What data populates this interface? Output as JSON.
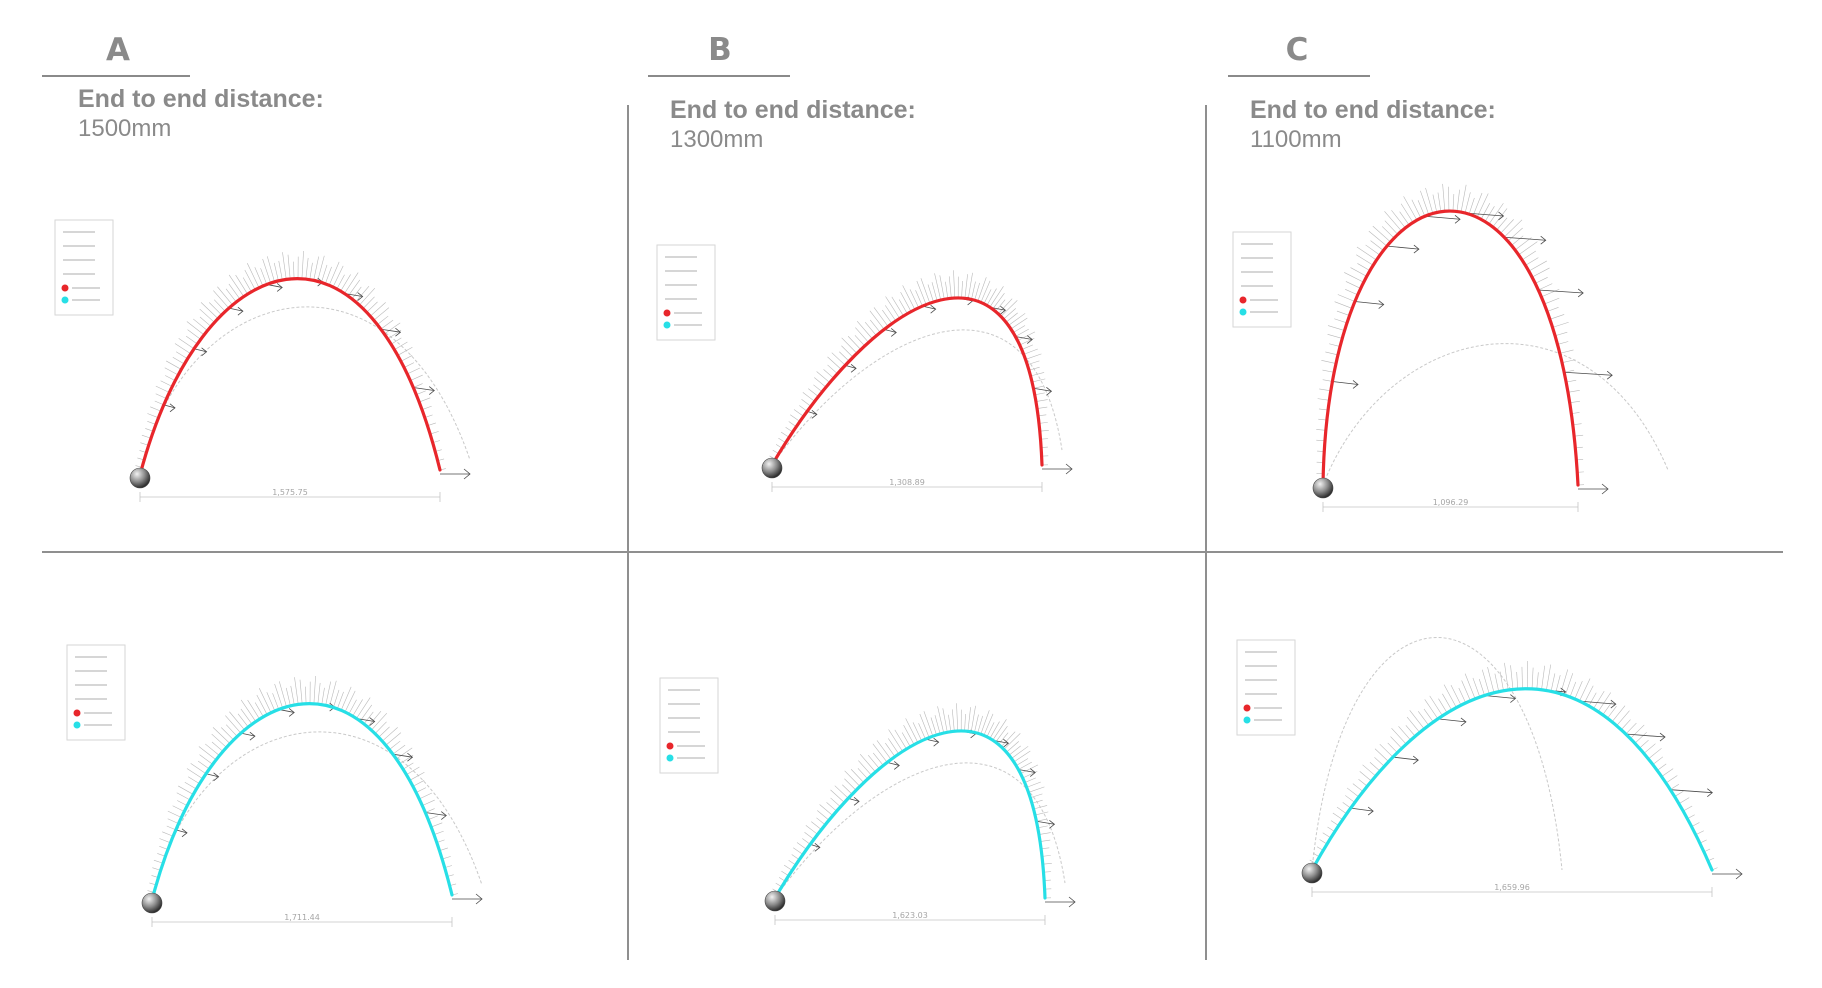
{
  "columns": [
    {
      "letter": "A",
      "distance_title": "End to end distance:",
      "distance_value": "1500mm"
    },
    {
      "letter": "B",
      "distance_title": "End to end distance:",
      "distance_value": "1300mm"
    },
    {
      "letter": "C",
      "distance_title": "End to end distance:",
      "distance_value": "1100mm"
    }
  ],
  "colors": {
    "top_curve": "#e8262b",
    "bottom_curve": "#27dfe6",
    "text": "#8a8a8a"
  },
  "panels": [
    {
      "row": "top",
      "column": "A",
      "dimension_label": "1,575.75",
      "arch": "round"
    },
    {
      "row": "top",
      "column": "B",
      "dimension_label": "1,308.89",
      "arch": "hook"
    },
    {
      "row": "top",
      "column": "C",
      "dimension_label": "1,096.29",
      "arch": "tall"
    },
    {
      "row": "bottom",
      "column": "A",
      "dimension_label": "1,711.44",
      "arch": "round"
    },
    {
      "row": "bottom",
      "column": "B",
      "dimension_label": "1,623.03",
      "arch": "hook"
    },
    {
      "row": "bottom",
      "column": "C",
      "dimension_label": "1,659.96",
      "arch": "wide"
    }
  ]
}
